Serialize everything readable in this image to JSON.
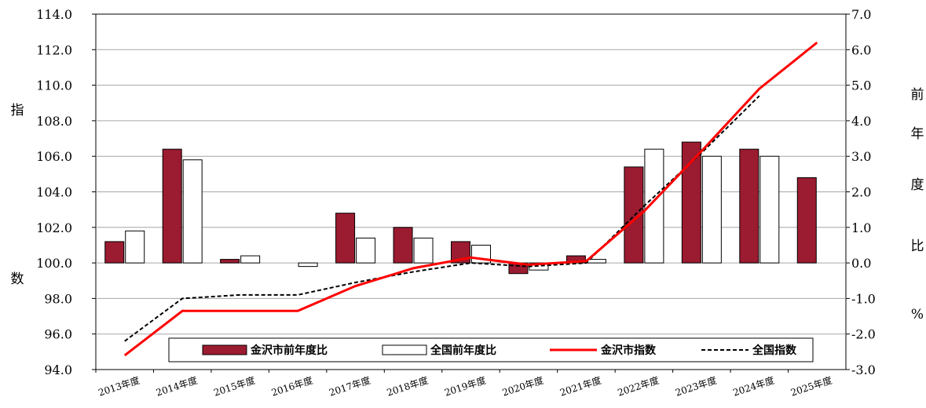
{
  "chart_data": {
    "type": "bar",
    "title": "",
    "categories": [
      "2013年度",
      "2014年度",
      "2015年度",
      "2016年度",
      "2017年度",
      "2018年度",
      "2019年度",
      "2020年度",
      "2021年度",
      "2022年度",
      "2023年度",
      "2024年度",
      "2025年度"
    ],
    "left_axis": {
      "label_chars": [
        "指",
        "数"
      ],
      "range": [
        94.0,
        114.0
      ],
      "ticks": [
        "94.0",
        "96.0",
        "98.0",
        "100.0",
        "102.0",
        "104.0",
        "106.0",
        "108.0",
        "110.0",
        "112.0",
        "114.0"
      ]
    },
    "right_axis": {
      "label_chars": [
        "前",
        "年",
        "度",
        "比",
        "%"
      ],
      "range": [
        -3.0,
        7.0
      ],
      "ticks": [
        "-3.0",
        "-2.0",
        "-1.0",
        "0.0",
        "1.0",
        "2.0",
        "3.0",
        "4.0",
        "5.0",
        "6.0",
        "7.0"
      ]
    },
    "grid": true,
    "legend_position": "bottom",
    "series": [
      {
        "name": "金沢市前年度比",
        "kind": "bar",
        "axis": "right",
        "color": "#9b1b30",
        "values": [
          0.6,
          3.2,
          0.1,
          0.0,
          1.4,
          1.0,
          0.6,
          -0.3,
          0.2,
          2.7,
          3.4,
          3.2,
          2.4
        ]
      },
      {
        "name": "全国前年度比",
        "kind": "bar",
        "axis": "right",
        "color": "#ffffff",
        "values": [
          0.9,
          2.9,
          0.2,
          -0.1,
          0.7,
          0.7,
          0.5,
          -0.2,
          0.1,
          3.2,
          3.0,
          3.0,
          null
        ]
      },
      {
        "name": "金沢市指数",
        "kind": "line",
        "axis": "left",
        "color": "#ff0000",
        "values": [
          94.8,
          97.3,
          97.3,
          97.3,
          98.7,
          99.7,
          100.3,
          99.9,
          100.1,
          102.9,
          106.3,
          109.8,
          112.4
        ]
      },
      {
        "name": "全国指数",
        "kind": "line",
        "axis": "left",
        "color": "#000000",
        "dashed": true,
        "values": [
          95.6,
          98.0,
          98.2,
          98.2,
          98.9,
          99.5,
          100.0,
          99.8,
          100.0,
          103.2,
          106.2,
          109.4,
          null
        ]
      }
    ]
  }
}
